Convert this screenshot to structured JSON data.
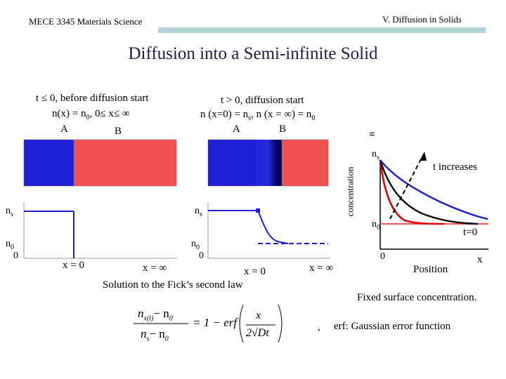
{
  "header": {
    "course": "MECE 3345 Materials Science",
    "chapter": "V. Diffusion in Solids"
  },
  "title": "Diffusion into a Semi-infinite Solid",
  "left_panel": {
    "line1": "t ≤ 0, before diffusion start",
    "line2_pre": "n(x) = n",
    "line2_sub": "0",
    "line2_post": ",  0≤ x≤ ∞",
    "label_a": "A",
    "label_b": "B",
    "ns": "n",
    "ns_sub": "s",
    "n0": "n",
    "n0_sub": "0",
    "zero": "0",
    "x_eq_0": "x = 0",
    "x_eq_inf": "x = ∞"
  },
  "middle_panel": {
    "line1": "t > 0, diffusion start",
    "line2_a": "n (x=0) = n",
    "line2_a_sub": "s",
    "line2_b": ", n (x = ∞) = n",
    "line2_b_sub": "0",
    "label_a": "A",
    "label_b": "B",
    "ns": "n",
    "ns_sub": "s",
    "n0": "n",
    "n0_sub": "0",
    "zero": "0",
    "x_eq_0": "x = 0",
    "x_eq_inf": "x = ∞"
  },
  "right_panel": {
    "ylabel": "concentration",
    "ylabel_n": "n",
    "ns": "n",
    "ns_sub": "s",
    "n0": "n",
    "n0_sub": "0",
    "t_increases": "t increases",
    "t0": "t=0",
    "zero": "0",
    "position": "Position",
    "x": "x",
    "caption": "Fixed surface concentration."
  },
  "solution_label": "Solution to the Fick’s second law",
  "formula": {
    "lhs_num": "n",
    "lhs_num_sub": "x(t)",
    "minus1": "− n",
    "minus1_sub": "0",
    "lhs_den": "n",
    "lhs_den_sub": "s",
    "minus2": "− n",
    "minus2_sub": "0",
    "equals": "= 1 − erf",
    "arg_num": "x",
    "arg_den": "2√Dt"
  },
  "erf_note": {
    "comma": ",",
    "text": "erf: Gaussian error function"
  },
  "colors": {
    "blue": "#1f1fd6",
    "red": "#f45252",
    "black_curve": "#111111",
    "header_bar": "#b7d3da",
    "dark_blue": "#000066"
  }
}
